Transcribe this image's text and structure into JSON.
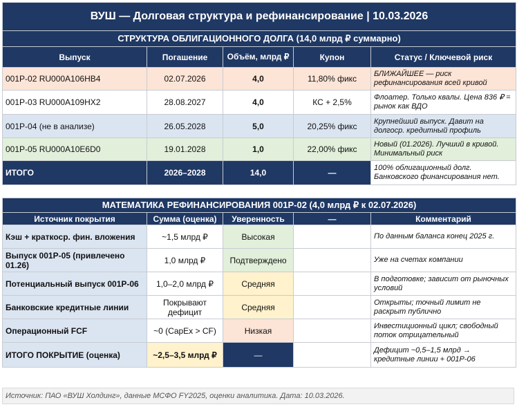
{
  "title": "ВУШ — Долговая структура и рефинансирование | 10.03.2026",
  "structure": {
    "section_title": "СТРУКТУРА ОБЛИГАЦИОННОГО ДОЛГА (14,0 млрд ₽ суммарно)",
    "headers": [
      "Выпуск",
      "Погашение",
      "Объём, млрд ₽",
      "Купон",
      "Статус / Ключевой риск"
    ],
    "rows": [
      {
        "issue": "001Р-02  RU000A106HB4",
        "maturity": "02.07.2026",
        "volume": "4,0",
        "coupon": "11,80% фикс",
        "status": "БЛИЖАЙШЕЕ — риск рефинансирования всей кривой"
      },
      {
        "issue": "001Р-03  RU000A109HX2",
        "maturity": "28.08.2027",
        "volume": "4,0",
        "coupon": "КС + 2,5%",
        "status": "Флоатер. Только квалы. Цена 836 ₽ = рынок как ВДО"
      },
      {
        "issue": "001Р-04  (не в анализе)",
        "maturity": "26.05.2028",
        "volume": "5,0",
        "coupon": "20,25% фикс",
        "status": "Крупнейший выпуск. Давит на долгоср. кредитный профиль"
      },
      {
        "issue": "001Р-05  RU000A10E6D0",
        "maturity": "19.01.2028",
        "volume": "1,0",
        "coupon": "22,00% фикс",
        "status": "Новый (01.2026). Лучший в кривой. Минимальный риск"
      }
    ],
    "total": {
      "label": "ИТОГО",
      "maturity": "2026–2028",
      "volume": "14,0",
      "coupon": "—",
      "status": "100% облигационный долг. Банковского финансирования нет."
    }
  },
  "refi": {
    "section_title": "МАТЕМАТИКА РЕФИНАНСИРОВАНИЯ 001Р-02 (4,0 млрд ₽ к 02.07.2026)",
    "headers": [
      "Источник покрытия",
      "Сумма (оценка)",
      "Уверенность",
      "—",
      "Комментарий"
    ],
    "rows": [
      {
        "source": "Кэш + краткоср. фин. вложения",
        "amount": "~1,5 млрд ₽",
        "confidence": "Высокая",
        "level": "hi",
        "comment": "По данным баланса конец 2025 г."
      },
      {
        "source": "Выпуск 001Р-05 (привлечено 01.26)",
        "amount": "1,0 млрд ₽",
        "confidence": "Подтверждено",
        "level": "hi",
        "comment": "Уже на счетах компании"
      },
      {
        "source": "Потенциальный выпуск 001Р-06",
        "amount": "1,0–2,0 млрд ₽",
        "confidence": "Средняя",
        "level": "mid",
        "comment": "В подготовке; зависит от рыночных условий"
      },
      {
        "source": "Банковские кредитные линии",
        "amount": "Покрывают дефицит",
        "confidence": "Средняя",
        "level": "mid",
        "comment": "Открыты; точный лимит не раскрыт публично"
      },
      {
        "source": "Операционный FCF",
        "amount": "~0 (CapEx > CF)",
        "confidence": "Низкая",
        "level": "lo",
        "comment": "Инвестиционный цикл; свободный поток отрицательный"
      }
    ],
    "total": {
      "source": "ИТОГО ПОКРЫТИЕ (оценка)",
      "amount": "~2,5–3,5 млрд ₽",
      "confidence": "—",
      "comment": "Дефицит ~0,5–1,5 млрд → кредитные линии + 001Р-06"
    }
  },
  "footer": "Источник: ПАО «ВУШ Холдинг», данные МСФО FY2025, оценки аналитика. Дата: 10.03.2026."
}
